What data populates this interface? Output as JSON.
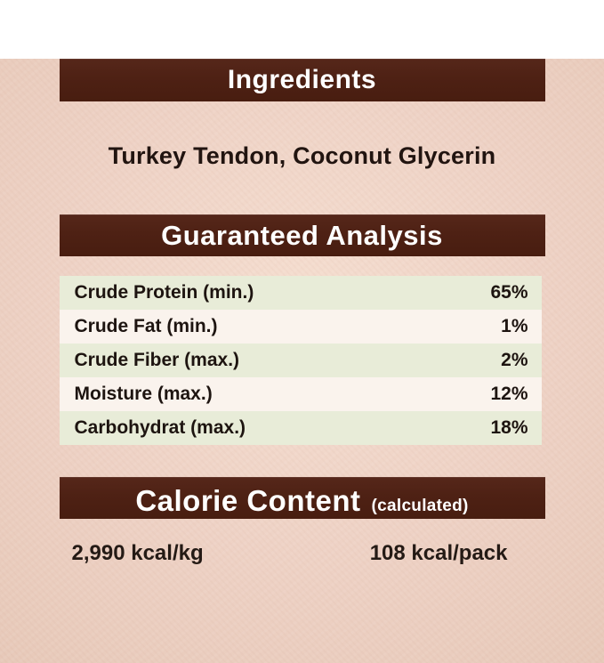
{
  "colors": {
    "background": "#eed2c5",
    "header_bar": "#4e2114",
    "header_text": "#ffffff",
    "body_text": "#1d1410",
    "row_green": "#e8ecd8",
    "row_light": "#faf3ed"
  },
  "ingredients": {
    "title": "Ingredients",
    "content": "Turkey Tendon, Coconut Glycerin"
  },
  "guaranteed_analysis": {
    "title": "Guaranteed Analysis",
    "rows": [
      {
        "label": "Crude Protein (min.)",
        "value": "65%"
      },
      {
        "label": "Crude Fat (min.)",
        "value": "1%"
      },
      {
        "label": "Crude Fiber (max.)",
        "value": "2%"
      },
      {
        "label": "Moisture (max.)",
        "value": "12%"
      },
      {
        "label": "Carbohydrat (max.)",
        "value": "18%"
      }
    ]
  },
  "calorie_content": {
    "title": "Calorie Content",
    "subtitle": "(calculated)",
    "per_kg": "2,990 kcal/kg",
    "per_pack": "108 kcal/pack"
  }
}
